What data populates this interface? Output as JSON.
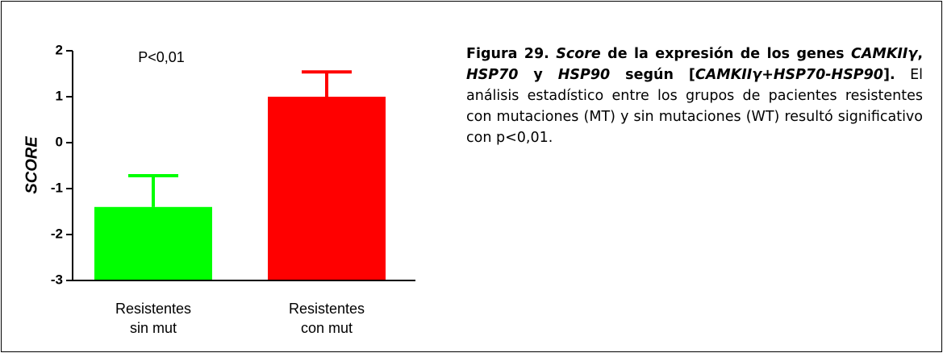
{
  "chart_data": {
    "type": "bar",
    "ylabel": "SCORE",
    "annotation": "P<0,01",
    "categories": [
      [
        "Resistentes",
        "sin mut"
      ],
      [
        "Resistentes",
        "con mut"
      ]
    ],
    "values": [
      -1.4,
      1.0
    ],
    "errors": [
      0.68,
      0.54
    ],
    "colors": [
      "#00ff00",
      "#ff0000"
    ],
    "ylim": [
      -3,
      2
    ],
    "yticks": [
      -3,
      -2,
      -1,
      0,
      1,
      2
    ]
  },
  "caption": [
    "Figura 29. ",
    "Score",
    " de la expresión de los genes ",
    "CAMKIIγ",
    ", ",
    "HSP70",
    " y ",
    "HSP90",
    " según [",
    "CAMKIIγ+HSP70-HSP90",
    "].",
    " El análisis estadístico entre los grupos de pacientes resistentes con mutaciones (MT) y sin mutaciones (WT) resultó significativo con p<0,01."
  ]
}
